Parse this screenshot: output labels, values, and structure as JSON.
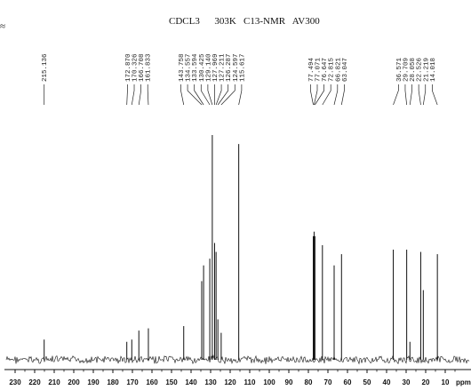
{
  "header": {
    "title": "CDCL3      303K   C13-NMR   AV300"
  },
  "chart_data": {
    "type": "line",
    "title": "CDCL3      303K   C13-NMR   AV300",
    "xlabel": "ppm",
    "ylabel": "",
    "xlim": [
      230,
      5
    ],
    "x_reversed": true,
    "xticks": [
      230,
      220,
      210,
      200,
      190,
      180,
      170,
      160,
      150,
      140,
      130,
      120,
      110,
      100,
      90,
      80,
      70,
      60,
      50,
      40,
      30,
      20,
      10
    ],
    "peak_labels": [
      "215.136",
      "172.870",
      "170.326",
      "166.708",
      "161.833",
      "143.758",
      "134.557",
      "133.594",
      "130.425",
      "129.140",
      "127.969",
      "127.211",
      "126.287",
      "124.597",
      "115.617",
      "77.494",
      "77.071",
      "76.647",
      "72.815",
      "66.821",
      "63.047",
      "36.571",
      "29.709",
      "28.058",
      "22.526",
      "21.219",
      "14.018"
    ],
    "peaks": [
      {
        "ppm": 215.136,
        "height": 0.09
      },
      {
        "ppm": 172.87,
        "height": 0.08
      },
      {
        "ppm": 170.326,
        "height": 0.09
      },
      {
        "ppm": 166.708,
        "height": 0.13
      },
      {
        "ppm": 161.833,
        "height": 0.14
      },
      {
        "ppm": 143.758,
        "height": 0.15
      },
      {
        "ppm": 134.557,
        "height": 0.35
      },
      {
        "ppm": 133.594,
        "height": 0.42
      },
      {
        "ppm": 130.425,
        "height": 0.45
      },
      {
        "ppm": 129.14,
        "height": 1.0
      },
      {
        "ppm": 127.969,
        "height": 0.52
      },
      {
        "ppm": 127.211,
        "height": 0.48
      },
      {
        "ppm": 126.287,
        "height": 0.18
      },
      {
        "ppm": 124.597,
        "height": 0.12
      },
      {
        "ppm": 115.617,
        "height": 0.96
      },
      {
        "ppm": 77.494,
        "height": 0.55
      },
      {
        "ppm": 77.071,
        "height": 0.57
      },
      {
        "ppm": 76.647,
        "height": 0.55
      },
      {
        "ppm": 72.815,
        "height": 0.51
      },
      {
        "ppm": 66.821,
        "height": 0.42
      },
      {
        "ppm": 63.047,
        "height": 0.47
      },
      {
        "ppm": 36.571,
        "height": 0.49
      },
      {
        "ppm": 29.709,
        "height": 0.49
      },
      {
        "ppm": 28.058,
        "height": 0.08
      },
      {
        "ppm": 22.526,
        "height": 0.48
      },
      {
        "ppm": 21.219,
        "height": 0.31
      },
      {
        "ppm": 14.018,
        "height": 0.47
      }
    ]
  }
}
